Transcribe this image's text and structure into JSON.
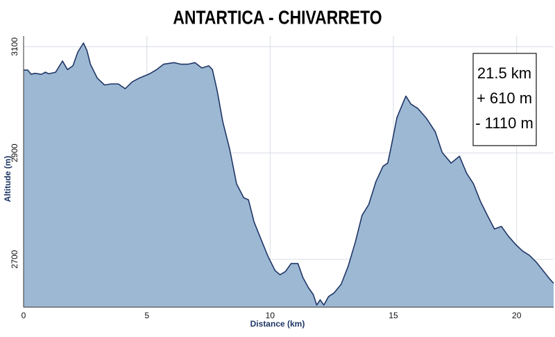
{
  "chart_data": {
    "type": "area",
    "title": "ANTARTICA - CHIVARRETO",
    "x_label": "Distance (km)",
    "y_label": "Altitude (m)",
    "annotations": [
      "21.5 km",
      "+ 610 m",
      "- 1110 m"
    ],
    "x": [
      0,
      0.17,
      0.31,
      0.45,
      0.73,
      0.88,
      1.02,
      1.3,
      1.58,
      1.78,
      2.0,
      2.2,
      2.43,
      2.57,
      2.71,
      2.99,
      3.28,
      3.56,
      3.84,
      4.12,
      4.41,
      4.69,
      5.11,
      5.4,
      5.68,
      6.1,
      6.38,
      6.67,
      6.95,
      7.23,
      7.51,
      7.66,
      7.85,
      8.08,
      8.36,
      8.64,
      8.93,
      9.12,
      9.35,
      9.63,
      9.92,
      10.2,
      10.4,
      10.62,
      10.85,
      11.13,
      11.33,
      11.55,
      11.75,
      11.89,
      12.03,
      12.18,
      12.37,
      12.6,
      12.88,
      13.16,
      13.45,
      13.73,
      14.0,
      14.29,
      14.58,
      14.77,
      14.92,
      15.14,
      15.37,
      15.51,
      15.71,
      15.99,
      16.33,
      16.7,
      16.98,
      17.34,
      17.68,
      17.97,
      18.25,
      18.53,
      18.81,
      19.1,
      19.38,
      19.66,
      19.94,
      20.23,
      20.51,
      20.79,
      21.07,
      21.36,
      21.5
    ],
    "series": [
      {
        "name": "Altitude",
        "color": "#1f3566",
        "fill": "#9cb8d3",
        "values": [
          3056,
          3056,
          3048,
          3050,
          3048,
          3052,
          3049,
          3052,
          3073,
          3057,
          3064,
          3090,
          3107,
          3093,
          3067,
          3041,
          3028,
          3030,
          3030,
          3021,
          3034,
          3041,
          3049,
          3057,
          3067,
          3070,
          3067,
          3067,
          3070,
          3060,
          3064,
          3057,
          3018,
          2959,
          2907,
          2842,
          2816,
          2812,
          2770,
          2738,
          2705,
          2679,
          2671,
          2677,
          2692,
          2692,
          2666,
          2647,
          2634,
          2614,
          2624,
          2614,
          2630,
          2637,
          2653,
          2686,
          2731,
          2783,
          2803,
          2846,
          2875,
          2881,
          2914,
          2966,
          2992,
          3007,
          2992,
          2984,
          2966,
          2940,
          2901,
          2881,
          2894,
          2862,
          2842,
          2809,
          2783,
          2757,
          2762,
          2744,
          2729,
          2716,
          2708,
          2695,
          2679,
          2662,
          2655
        ]
      }
    ],
    "xlim": [
      0,
      21.5
    ],
    "ylim": [
      2610,
      3120
    ],
    "xticks": [
      0,
      5,
      10,
      15,
      20
    ],
    "yticks": [
      2700,
      2900,
      3100
    ],
    "grid": true
  }
}
